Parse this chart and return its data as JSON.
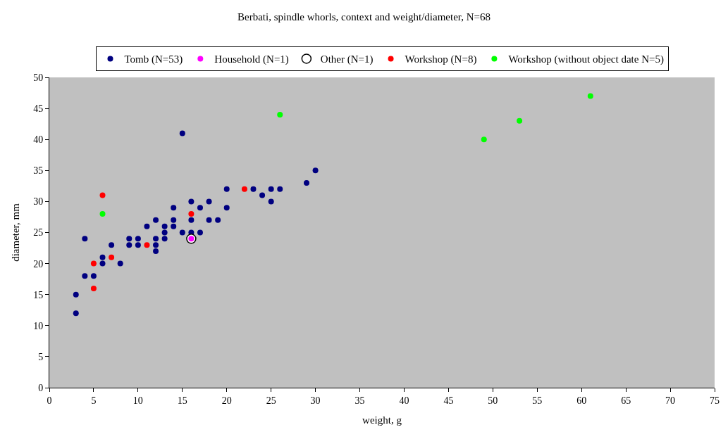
{
  "chart_data": {
    "type": "scatter",
    "title": "Berbati, spindle whorls, context and weight/diameter, N=68",
    "xlabel": "weight, g",
    "ylabel": "diameter, mm",
    "xlim": [
      0,
      75
    ],
    "xticks": [
      0,
      5,
      10,
      15,
      20,
      25,
      30,
      35,
      40,
      45,
      50,
      55,
      60,
      65,
      70,
      75
    ],
    "ylim": [
      0,
      50
    ],
    "yticks": [
      0,
      5,
      10,
      15,
      20,
      25,
      30,
      35,
      40,
      45,
      50
    ],
    "grid": false,
    "legend": "top",
    "marker": "circle",
    "series": [
      {
        "name": "Tomb (N=53)",
        "color": "#000080",
        "x": [
          3,
          3,
          4,
          4,
          5,
          6,
          6,
          7,
          8,
          9,
          9,
          10,
          10,
          11,
          12,
          12,
          12,
          12,
          13,
          13,
          13,
          14,
          14,
          14,
          15,
          15,
          16,
          16,
          16,
          17,
          17,
          18,
          18,
          19,
          20,
          20,
          23,
          24,
          25,
          25,
          26,
          29,
          30
        ],
        "values": [
          12,
          15,
          18,
          24,
          18,
          20,
          21,
          23,
          20,
          23,
          24,
          23,
          24,
          26,
          22,
          23,
          24,
          27,
          24,
          25,
          26,
          26,
          27,
          29,
          25,
          41,
          25,
          27,
          30,
          25,
          29,
          27,
          30,
          27,
          29,
          32,
          32,
          31,
          30,
          32,
          32,
          33,
          35
        ]
      },
      {
        "name": "Household (N=1)",
        "color": "#ff00ff",
        "x": [
          16
        ],
        "values": [
          24
        ]
      },
      {
        "name": "Other (N=1)",
        "color": "#ffffff",
        "x": [
          16
        ],
        "values": [
          24
        ]
      },
      {
        "name": "Workshop (N=8)",
        "color": "#ff0000",
        "x": [
          5,
          5,
          6,
          7,
          11,
          16,
          22
        ],
        "values": [
          16,
          20,
          31,
          21,
          23,
          28,
          32
        ]
      },
      {
        "name": "Workshop (without object date N=5)",
        "color": "#00ff00",
        "x": [
          6,
          26,
          49,
          53,
          61
        ],
        "values": [
          28,
          44,
          40,
          43,
          47
        ]
      }
    ]
  }
}
